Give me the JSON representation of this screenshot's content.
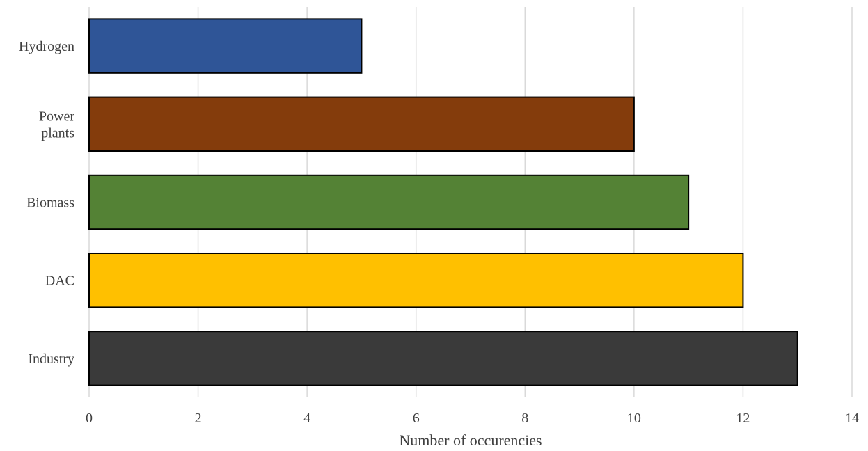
{
  "chart_data": {
    "type": "bar",
    "orientation": "horizontal",
    "categories": [
      "Hydrogen",
      "Power plants",
      "Biomass",
      "DAC",
      "Industry"
    ],
    "category_label_lines": [
      [
        "Hydrogen"
      ],
      [
        "Power",
        "plants"
      ],
      [
        "Biomass"
      ],
      [
        "DAC"
      ],
      [
        "Industry"
      ]
    ],
    "values": [
      5,
      10,
      11,
      12,
      13
    ],
    "colors": [
      "#2f5597",
      "#843c0c",
      "#548235",
      "#ffc000",
      "#3a3a3a"
    ],
    "title": "",
    "xlabel": "Number of occurencies",
    "ylabel": "",
    "xlim": [
      0,
      14
    ],
    "xticks": [
      0,
      2,
      4,
      6,
      8,
      10,
      12,
      14
    ],
    "grid": "vertical",
    "legend": "none"
  }
}
